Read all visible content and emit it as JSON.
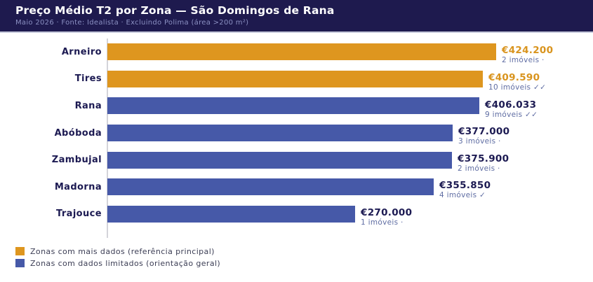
{
  "header": {
    "title": "Preço Médio T2 por Zona — São Domingos de Rana",
    "subtitle": "Maio 2026  ·  Fonte: Idealista  ·  Excluindo Polima (área >200 m²)"
  },
  "chart_data": {
    "type": "bar",
    "orientation": "horizontal",
    "title": "Preço Médio T2 por Zona — São Domingos de Rana",
    "categories": [
      "Arneiro",
      "Tires",
      "Rana",
      "Abóboda",
      "Zambujal",
      "Madorna",
      "Trajouce"
    ],
    "values": [
      424200,
      409590,
      406033,
      377000,
      375900,
      355850,
      270000
    ],
    "value_labels": [
      "€424.200",
      "€409.590",
      "€406.033",
      "€377.000",
      "€375.900",
      "€355.850",
      "€270.000"
    ],
    "count_labels": [
      "2 imóveis ·",
      "10 imóveis ✓✓",
      "9 imóveis ✓✓",
      "3 imóveis ·",
      "2 imóveis ·",
      "4 imóveis ✓",
      "1 imóveis ·"
    ],
    "bar_colors": [
      "#de961f",
      "#de961f",
      "#4659a8",
      "#4659a8",
      "#4659a8",
      "#4659a8",
      "#4659a8"
    ],
    "value_text_colors": [
      "#d9941e",
      "#d9941e",
      "#1c1a52",
      "#1c1a52",
      "#1c1a52",
      "#1c1a52",
      "#1c1a52"
    ],
    "xlim": [
      0,
      424200
    ],
    "grid": false,
    "ylabel": "",
    "xlabel": "",
    "legend_position": "bottom-left"
  },
  "legend": {
    "items": [
      {
        "label": "Zonas com mais dados (referência principal)",
        "color": "#de961f"
      },
      {
        "label": "Zonas com dados limitados (orientação geral)",
        "color": "#4659a8"
      }
    ]
  },
  "colors": {
    "header_bg": "#1e1a4e",
    "header_border": "#c6c9db",
    "accent_orange": "#de961f",
    "accent_blue": "#4659a8",
    "text_navy": "#1c1a52",
    "text_muted": "#5f6da3"
  }
}
